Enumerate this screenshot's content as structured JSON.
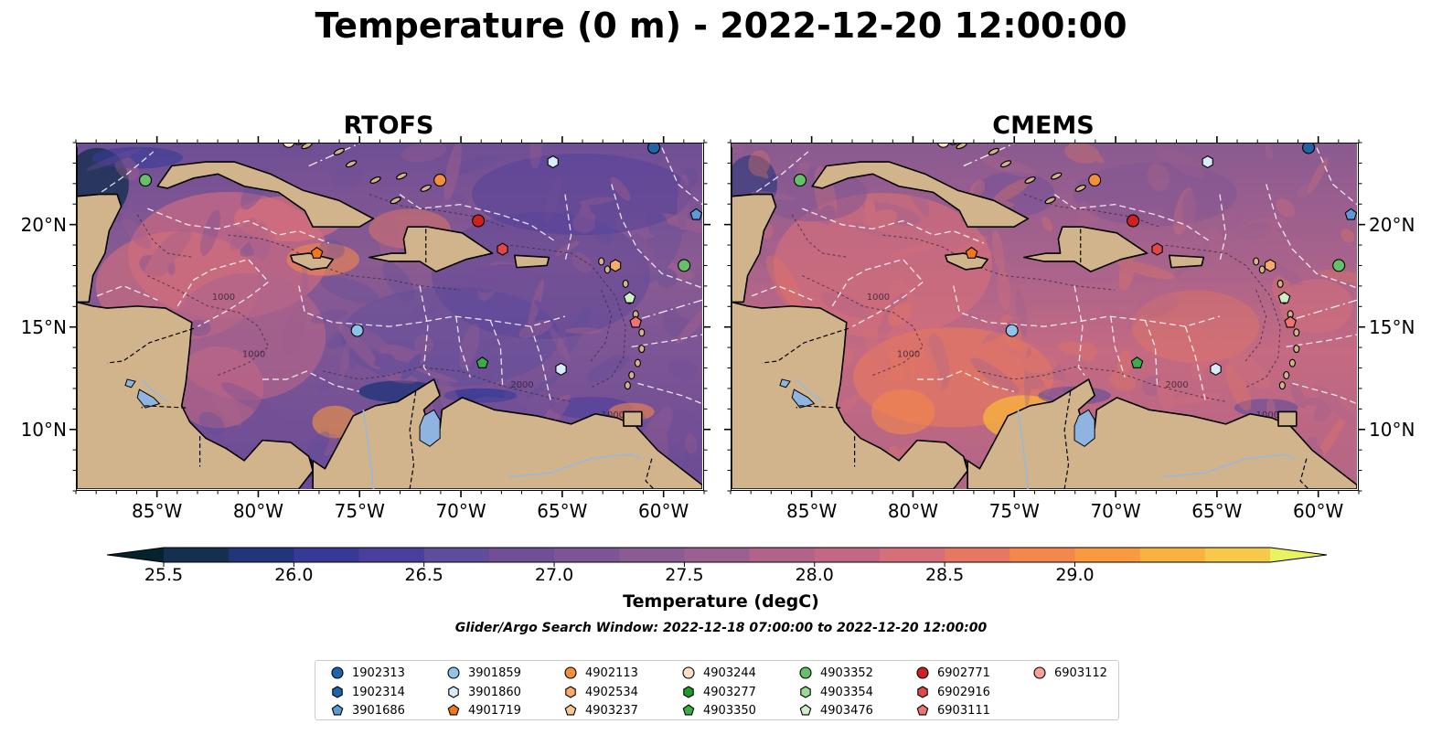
{
  "title": "Temperature (0 m) - 2022-12-20 12:00:00",
  "panels": [
    {
      "title": "RTOFS"
    },
    {
      "title": "CMEMS"
    }
  ],
  "axes": {
    "lon_ticks": [
      "85°W",
      "80°W",
      "75°W",
      "70°W",
      "65°W",
      "60°W"
    ],
    "lat_ticks": [
      "20°N",
      "15°N",
      "10°N"
    ],
    "lon_range": [
      -89,
      -58
    ],
    "lat_range": [
      7,
      24
    ]
  },
  "contour_labels": [
    "1000",
    "1000",
    "1000",
    "2000"
  ],
  "colorbar": {
    "label": "Temperature (degC)",
    "ticks": [
      "25.5",
      "26.0",
      "26.5",
      "27.0",
      "27.5",
      "28.0",
      "28.5",
      "29.0"
    ],
    "min": 25.5,
    "max": 29.0,
    "colors": [
      "#05222e",
      "#15304f",
      "#22357a",
      "#363a96",
      "#4b3f9c",
      "#5f4d9b",
      "#704f97",
      "#7d5594",
      "#8a5c93",
      "#9c6090",
      "#b0648a",
      "#c26884",
      "#d56f7a",
      "#e67760",
      "#f4874b",
      "#f99a40",
      "#f8b23f",
      "#f6c94a",
      "#e9f25f"
    ]
  },
  "search_window": "Glider/Argo Search Window: 2022-12-18 07:00:00 to 2022-12-20 12:00:00",
  "legend": [
    {
      "id": "1902313",
      "marker": "circle",
      "color": "#1f63a8"
    },
    {
      "id": "1902314",
      "marker": "hexagon",
      "color": "#1f63a8"
    },
    {
      "id": "3901686",
      "marker": "pentagon",
      "color": "#5b9bd5"
    },
    {
      "id": "3901859",
      "marker": "circle",
      "color": "#8ec3ea"
    },
    {
      "id": "3901860",
      "marker": "hexagon",
      "color": "#d8ebf8"
    },
    {
      "id": "4901719",
      "marker": "pentagon",
      "color": "#f07818"
    },
    {
      "id": "4902113",
      "marker": "circle",
      "color": "#f29040"
    },
    {
      "id": "4902534",
      "marker": "hexagon",
      "color": "#f7aa6e"
    },
    {
      "id": "4903237",
      "marker": "pentagon",
      "color": "#f9c794"
    },
    {
      "id": "4903244",
      "marker": "circle",
      "color": "#fbe0c8"
    },
    {
      "id": "4903277",
      "marker": "hexagon",
      "color": "#1e9b2c"
    },
    {
      "id": "4903350",
      "marker": "pentagon",
      "color": "#3aac48"
    },
    {
      "id": "4903352",
      "marker": "circle",
      "color": "#66c06a"
    },
    {
      "id": "4903354",
      "marker": "hexagon",
      "color": "#9ad996"
    },
    {
      "id": "4903476",
      "marker": "pentagon",
      "color": "#ccefc6"
    },
    {
      "id": "6902771",
      "marker": "circle",
      "color": "#cf2020"
    },
    {
      "id": "6902916",
      "marker": "hexagon",
      "color": "#e04848"
    },
    {
      "id": "6903111",
      "marker": "pentagon",
      "color": "#ef7373"
    },
    {
      "id": "6903112",
      "marker": "circle",
      "color": "#f7a0a0"
    }
  ],
  "floats": [
    {
      "id": "4903352",
      "lon": -85.6,
      "lat": 22.2
    },
    {
      "id": "4903244",
      "lon": -78.5,
      "lat": 24.1
    },
    {
      "id": "4902113",
      "lon": -71.0,
      "lat": 22.2
    },
    {
      "id": "3901860",
      "lon": -65.4,
      "lat": 23.1
    },
    {
      "id": "1902313",
      "lon": -60.4,
      "lat": 23.8
    },
    {
      "id": "3901686",
      "lon": -58.3,
      "lat": 20.5
    },
    {
      "id": "6902771",
      "lon": -69.1,
      "lat": 20.2
    },
    {
      "id": "6902916",
      "lon": -67.9,
      "lat": 18.8
    },
    {
      "id": "4901719",
      "lon": -77.1,
      "lat": 18.6
    },
    {
      "id": "4902534",
      "lon": -62.3,
      "lat": 18.0
    },
    {
      "id": "4903352",
      "lon": -58.9,
      "lat": 18.0
    },
    {
      "id": "4903476",
      "lon": -61.6,
      "lat": 16.4
    },
    {
      "id": "6903111",
      "lon": -61.3,
      "lat": 15.2
    },
    {
      "id": "3901859",
      "lon": -75.1,
      "lat": 14.8
    },
    {
      "id": "4903350",
      "lon": -68.9,
      "lat": 13.2
    },
    {
      "id": "3901860",
      "lon": -65.0,
      "lat": 12.9
    }
  ]
}
